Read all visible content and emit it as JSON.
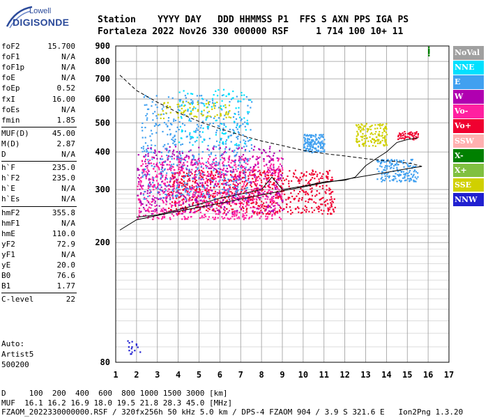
{
  "logo": {
    "line1": "Lowell",
    "line2": "DIGISONDE"
  },
  "header": {
    "row1": "Station    YYYY DAY   DDD HHMMSS P1  FFS S AXN PPS IGA PS",
    "row2": "Fortaleza 2022 Nov26 330 000000 RSF     1 714 100 10+ 11"
  },
  "params": [
    {
      "label": "foF2",
      "value": "15.700"
    },
    {
      "label": "foF1",
      "value": "N/A"
    },
    {
      "label": "foF1p",
      "value": "N/A"
    },
    {
      "label": "foE",
      "value": "N/A"
    },
    {
      "label": "foEp",
      "value": "0.52"
    },
    {
      "label": "fxI",
      "value": "16.00"
    },
    {
      "label": "foEs",
      "value": "N/A"
    },
    {
      "label": "fmin",
      "value": "1.85"
    },
    {
      "label": "MUF(D)",
      "value": "45.00"
    },
    {
      "label": "M(D)",
      "value": "2.87"
    },
    {
      "label": "D",
      "value": "N/A"
    },
    {
      "label": "h`F",
      "value": "235.0"
    },
    {
      "label": "h`F2",
      "value": "235.0"
    },
    {
      "label": "h`E",
      "value": "N/A"
    },
    {
      "label": "h`Es",
      "value": "N/A"
    },
    {
      "label": "hmF2",
      "value": "355.8"
    },
    {
      "label": "hmF1",
      "value": "N/A"
    },
    {
      "label": "hmE",
      "value": "110.0"
    },
    {
      "label": "yF2",
      "value": "72.9"
    },
    {
      "label": "yF1",
      "value": "N/A"
    },
    {
      "label": "yE",
      "value": "20.0"
    },
    {
      "label": "B0",
      "value": "76.6"
    },
    {
      "label": "B1",
      "value": "1.77"
    },
    {
      "label": "C-level",
      "value": "22"
    }
  ],
  "auto": {
    "line1": "Auto:",
    "line2": "Artist5",
    "line3": "500200"
  },
  "bottom": {
    "d_line": "D     100  200  400  600  800 1000 1500 3000 [km]",
    "muf_line": "MUF  16.1 16.2 16.9 18.0 19.5 21.8 28.3 45.0 [MHz]",
    "file_line": "FZAOM_2022330000000.RSF / 320fx256h 50 kHz 5.0 km / DPS-4 FZAOM 904 / 3.9 S 321.6 E   Ion2Png 1.3.20"
  },
  "legend": [
    {
      "label": "NoVal",
      "color": "#a0a0a0"
    },
    {
      "label": "NNE",
      "color": "#00e0ff"
    },
    {
      "label": "E",
      "color": "#40a0f0"
    },
    {
      "label": "W",
      "color": "#b000b0"
    },
    {
      "label": "Vo-",
      "color": "#ff20a0"
    },
    {
      "label": "Vo+",
      "color": "#f00030"
    },
    {
      "label": "SSW",
      "color": "#ffb0b0"
    },
    {
      "label": "X-",
      "color": "#008000"
    },
    {
      "label": "X+",
      "color": "#80c040"
    },
    {
      "label": "SSE",
      "color": "#d0d000"
    },
    {
      "label": "NNW",
      "color": "#2020d0"
    }
  ],
  "chart_data": {
    "type": "scatter",
    "xlim": [
      1,
      17
    ],
    "ylim": [
      80,
      900
    ],
    "y_scale": "log",
    "x_ticks": [
      "1",
      "2",
      "3",
      "4",
      "5",
      "6",
      "7",
      "8",
      "9",
      "10",
      "11",
      "12",
      "13",
      "14",
      "15",
      "16",
      "17"
    ],
    "y_ticks": [
      {
        "value": 80,
        "label": "80"
      },
      {
        "value": 200,
        "label": "200"
      },
      {
        "value": 300,
        "label": "300"
      },
      {
        "value": 400,
        "label": "400"
      },
      {
        "value": 500,
        "label": "500"
      },
      {
        "value": 600,
        "label": "600"
      },
      {
        "value": 700,
        "label": "700"
      },
      {
        "value": 800,
        "label": "800"
      },
      {
        "value": 900,
        "label": "900"
      }
    ],
    "y_minor": [
      90,
      100,
      110,
      120,
      130,
      140,
      150,
      160,
      170,
      180,
      190,
      210,
      220,
      230,
      240,
      250,
      260,
      270,
      280,
      290
    ],
    "grid": true,
    "virtual_height_trace": {
      "x": [
        1.2,
        2,
        3,
        4,
        5,
        6,
        7,
        8,
        9,
        10,
        11,
        12,
        13,
        14,
        15,
        15.7
      ],
      "y": [
        220,
        238,
        246,
        254,
        262,
        270,
        279,
        288,
        297,
        306,
        316,
        324,
        333,
        342,
        352,
        358
      ]
    },
    "density_profile": {
      "x": [
        1.2,
        2,
        3,
        4,
        5,
        6,
        7,
        8,
        9,
        10,
        11,
        12,
        13,
        13.8,
        14.4,
        15.2,
        15.7
      ],
      "y": [
        720,
        640,
        585,
        540,
        505,
        478,
        455,
        435,
        420,
        405,
        395,
        388,
        380,
        375,
        372,
        366,
        358
      ]
    },
    "trace_F2": {
      "x": [
        2.0,
        3.0,
        4.0,
        5.0,
        6.0,
        7.0,
        8.0,
        8.5,
        9.0,
        10.0,
        11.0,
        12.0,
        12.5,
        13.0,
        13.5,
        14.0,
        14.5,
        15.0,
        15.5
      ],
      "y": [
        243,
        247,
        257,
        268,
        281,
        290,
        300,
        330,
        300,
        308,
        318,
        322,
        330,
        360,
        380,
        400,
        430,
        440,
        445
      ]
    },
    "echo_clusters": [
      {
        "name": "Vo-",
        "x": [
          2.0,
          9.0
        ],
        "y": [
          240,
          390
        ],
        "n": 900
      },
      {
        "name": "Vo+",
        "x": [
          3.5,
          11.5
        ],
        "y": [
          250,
          350
        ],
        "n": 700
      },
      {
        "name": "W",
        "x": [
          2.0,
          9.0
        ],
        "y": [
          250,
          420
        ],
        "n": 450
      },
      {
        "name": "E",
        "x": [
          2.2,
          7.5
        ],
        "y": [
          280,
          620
        ],
        "n": 500
      },
      {
        "name": "NNE",
        "x": [
          4.0,
          7.5
        ],
        "y": [
          420,
          650
        ],
        "n": 110
      },
      {
        "name": "SSE",
        "x": [
          3.0,
          6.5
        ],
        "y": [
          520,
          590
        ],
        "n": 80
      },
      {
        "name": "E",
        "x": [
          10.0,
          11.0
        ],
        "y": [
          400,
          460
        ],
        "n": 150
      },
      {
        "name": "SSE",
        "x": [
          12.5,
          14.0
        ],
        "y": [
          420,
          500
        ],
        "n": 140
      },
      {
        "name": "E",
        "x": [
          13.5,
          15.5
        ],
        "y": [
          320,
          380
        ],
        "n": 160
      },
      {
        "name": "Vo+",
        "x": [
          14.5,
          15.5
        ],
        "y": [
          440,
          470
        ],
        "n": 60
      },
      {
        "name": "NNW",
        "x": [
          1.5,
          2.2
        ],
        "y": [
          85,
          95
        ],
        "n": 15
      },
      {
        "name": "X-",
        "x": [
          16.0,
          16.0
        ],
        "y": [
          840,
          900
        ],
        "n": 12
      }
    ]
  }
}
